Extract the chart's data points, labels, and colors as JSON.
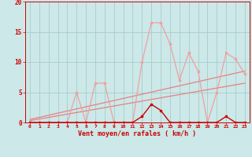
{
  "xlabel": "Vent moyen/en rafales ( km/h )",
  "background_color": "#cce8e8",
  "grid_color": "#aacccc",
  "xlim": [
    -0.5,
    23.5
  ],
  "ylim": [
    0,
    20
  ],
  "yticks": [
    0,
    5,
    10,
    15,
    20
  ],
  "xticks": [
    0,
    1,
    2,
    3,
    4,
    5,
    6,
    7,
    8,
    9,
    10,
    11,
    12,
    13,
    14,
    15,
    16,
    17,
    18,
    19,
    20,
    21,
    22,
    23
  ],
  "light_pink_y": [
    0,
    0,
    0,
    0,
    0,
    5,
    0,
    6.5,
    6.5,
    0,
    0,
    0,
    10,
    16.5,
    16.5,
    13,
    7,
    11.5,
    8.5,
    0,
    5,
    11.5,
    10.5,
    8
  ],
  "dark_red_y": [
    0,
    0,
    0,
    0,
    0,
    0,
    0,
    0,
    0,
    0,
    0,
    0,
    1,
    3,
    2,
    0,
    0,
    0,
    0,
    0,
    0,
    1,
    0,
    0
  ],
  "trend1_x": [
    0,
    23
  ],
  "trend1_y": [
    0.3,
    6.5
  ],
  "trend2_x": [
    0,
    23
  ],
  "trend2_y": [
    0.5,
    8.5
  ],
  "light_color": "#f0a0a0",
  "dark_color": "#cc0000",
  "trend_color": "#e88080",
  "spine_color": "#cc0000",
  "tick_color": "#cc0000",
  "label_color": "#cc0000"
}
